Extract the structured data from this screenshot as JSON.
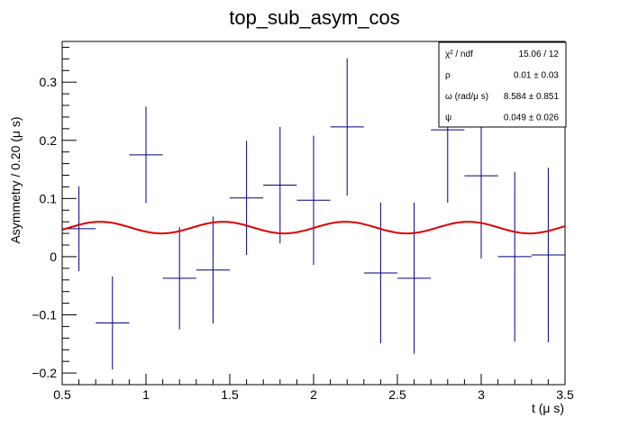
{
  "chart_data": {
    "type": "scatter",
    "title": "top_sub_asym_cos",
    "xlabel": "t (μ s)",
    "ylabel": "Asymmetry / 0.20 (μ s)",
    "xlim": [
      0.5,
      3.5
    ],
    "ylim": [
      -0.22,
      0.37
    ],
    "x_ticks": [
      0.5,
      1,
      1.5,
      2,
      2.5,
      3,
      3.5
    ],
    "x_tick_labels": [
      "0.5",
      "1",
      "1.5",
      "2",
      "2.5",
      "3",
      "3.5"
    ],
    "y_ticks": [
      -0.2,
      -0.1,
      0,
      0.1,
      0.2,
      0.3
    ],
    "y_tick_labels": [
      "−0.2",
      "−0.1",
      "0",
      "0.1",
      "0.2",
      "0.3"
    ],
    "grid": false,
    "series": [
      {
        "color": "#000080",
        "style": "errorbars",
        "x": [
          0.6,
          0.8,
          1.0,
          1.2,
          1.4,
          1.6,
          1.8,
          2.0,
          2.2,
          2.4,
          2.6,
          2.8,
          3.0,
          3.2,
          3.4
        ],
        "y": [
          0.048,
          -0.114,
          0.175,
          -0.037,
          -0.023,
          0.101,
          0.123,
          0.097,
          0.223,
          -0.028,
          -0.037,
          0.218,
          0.139,
          0.0,
          0.003
        ],
        "xerr": [
          0.1,
          0.1,
          0.1,
          0.1,
          0.1,
          0.1,
          0.1,
          0.1,
          0.1,
          0.1,
          0.1,
          0.1,
          0.1,
          0.1,
          0.1
        ],
        "yerr": [
          0.073,
          0.08,
          0.083,
          0.088,
          0.092,
          0.098,
          0.1,
          0.111,
          0.118,
          0.121,
          0.13,
          0.125,
          0.142,
          0.146,
          0.15
        ]
      },
      {
        "color": "#dd0000",
        "style": "line",
        "function": "fit",
        "offset": 0.05,
        "amplitude": 0.01,
        "omega": 8.584,
        "phase": 0.049
      }
    ],
    "stats_box": {
      "position": "top-right",
      "rows": [
        {
          "label": "χ² / ndf",
          "value": "15.06 / 12"
        },
        {
          "label": "ρ",
          "value": "0.01 ± 0.03"
        },
        {
          "label": "ω (rad/μ s)",
          "value": "8.584 ± 0.851"
        },
        {
          "label": "ψ",
          "value": "0.049 ± 0.026"
        }
      ]
    }
  }
}
